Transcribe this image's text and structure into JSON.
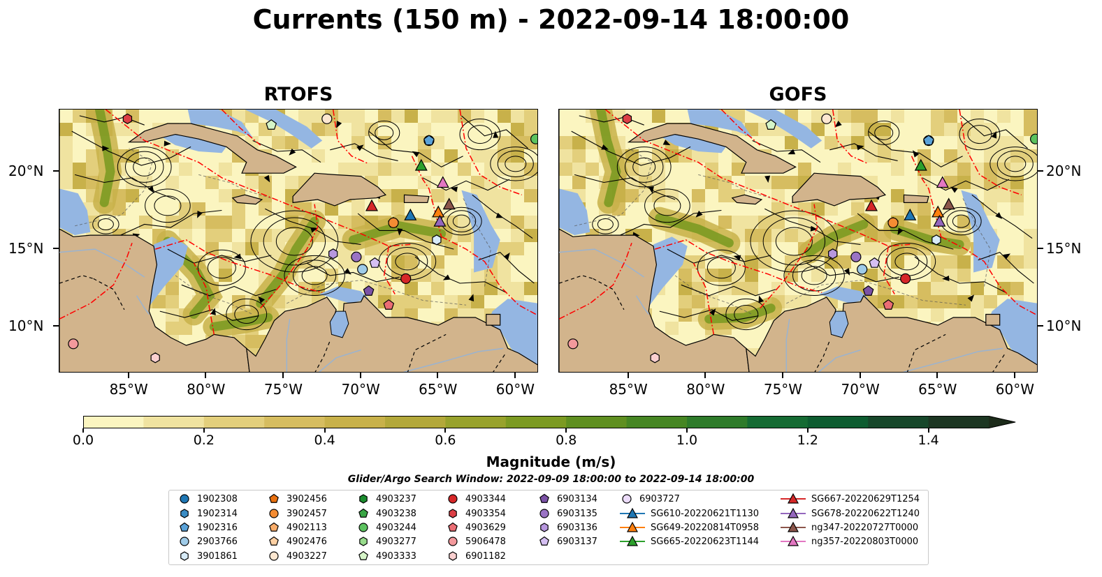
{
  "title": "Currents (150 m) - 2022-09-14 18:00:00",
  "panels": [
    {
      "id": "rtofs",
      "title": "RTOFS"
    },
    {
      "id": "gofs",
      "title": "GOFS"
    }
  ],
  "map_axes": {
    "lon_ticks": [
      "85°W",
      "80°W",
      "75°W",
      "70°W",
      "65°W",
      "60°W"
    ],
    "lat_ticks": [
      "20°N",
      "15°N",
      "10°N"
    ],
    "extent": {
      "lon_min": -89.5,
      "lon_max": -58.5,
      "lat_min": 7,
      "lat_max": 24
    }
  },
  "colorbar": {
    "title": "Magnitude (m/s)",
    "tick_labels": [
      "0.0",
      "0.2",
      "0.4",
      "0.6",
      "0.8",
      "1.0",
      "1.2",
      "1.4"
    ],
    "range": [
      0.0,
      1.5
    ],
    "extend": "max",
    "colors": [
      "#fbf5c0",
      "#f0e3a0",
      "#e3cf7c",
      "#d6bd60",
      "#c8b14a",
      "#b3a83a",
      "#98a22c",
      "#7c9a22",
      "#5f8f20",
      "#468623",
      "#2e7b2a",
      "#156b33",
      "#0d5c30",
      "#16472a",
      "#1c3622",
      "#1c2b1a"
    ]
  },
  "search_window": "Glider/Argo Search Window: 2022-09-09 18:00:00 to 2022-09-14 18:00:00",
  "colors": {
    "land": "#d2b48c",
    "shallow_water": "#94b6e2",
    "eez_lines": "#ff0000",
    "streamlines": "#000000"
  },
  "legend": [
    {
      "label": "1902308",
      "marker": "circle",
      "color": "#1f77b4"
    },
    {
      "label": "1902314",
      "marker": "hexagon",
      "color": "#3a8cc4"
    },
    {
      "label": "1902316",
      "marker": "pentagon",
      "color": "#5aa2d8"
    },
    {
      "label": "2903766",
      "marker": "circle",
      "color": "#9fcbe8"
    },
    {
      "label": "3901861",
      "marker": "hexagon",
      "color": "#d7ebf8"
    },
    {
      "label": "3902456",
      "marker": "pentagon",
      "color": "#e8700f"
    },
    {
      "label": "3902457",
      "marker": "circle",
      "color": "#f48c33"
    },
    {
      "label": "4902113",
      "marker": "pentagon",
      "color": "#f9ad6a"
    },
    {
      "label": "4902476",
      "marker": "pentagon",
      "color": "#fdd0a3"
    },
    {
      "label": "4903227",
      "marker": "circle",
      "color": "#fde7d0"
    },
    {
      "label": "4903237",
      "marker": "hexagon",
      "color": "#1b8c2e"
    },
    {
      "label": "4903238",
      "marker": "pentagon",
      "color": "#3aa646"
    },
    {
      "label": "4903244",
      "marker": "circle",
      "color": "#5cc25f"
    },
    {
      "label": "4903277",
      "marker": "hexagon",
      "color": "#98dc8c"
    },
    {
      "label": "4903333",
      "marker": "pentagon",
      "color": "#d6f5c8"
    },
    {
      "label": "4903344",
      "marker": "circle",
      "color": "#d62728"
    },
    {
      "label": "4903354",
      "marker": "hexagon",
      "color": "#dc3f45"
    },
    {
      "label": "4903629",
      "marker": "pentagon",
      "color": "#ea6d74"
    },
    {
      "label": "5906478",
      "marker": "circle",
      "color": "#f3999c"
    },
    {
      "label": "6901182",
      "marker": "hexagon",
      "color": "#fbd0d0"
    },
    {
      "label": "6903134",
      "marker": "pentagon",
      "color": "#7b52a6"
    },
    {
      "label": "6903135",
      "marker": "circle",
      "color": "#9a73c4"
    },
    {
      "label": "6903136",
      "marker": "hexagon",
      "color": "#b797de"
    },
    {
      "label": "6903137",
      "marker": "pentagon",
      "color": "#d5bff2"
    },
    {
      "label": "6903727",
      "marker": "circle",
      "color": "#ecdcfa"
    },
    {
      "label": "SG610-20220621T1130",
      "marker": "triangle-line",
      "color": "#1f77b4"
    },
    {
      "label": "SG649-20220814T0958",
      "marker": "triangle-line",
      "color": "#ff7f0e"
    },
    {
      "label": "SG665-20220623T1144",
      "marker": "triangle-line",
      "color": "#2ca02c"
    },
    {
      "label": "SG667-20220629T1254",
      "marker": "triangle-line",
      "color": "#d62728"
    },
    {
      "label": "SG678-20220622T1240",
      "marker": "triangle-line",
      "color": "#9467bd"
    },
    {
      "label": "ng347-20220727T0000",
      "marker": "triangle-line",
      "color": "#8c564b"
    },
    {
      "label": "ng357-20220803T0000",
      "marker": "triangle-line",
      "color": "#e377c2"
    }
  ],
  "observations": [
    {
      "id": "1902308",
      "lon": -65.6,
      "lat": 22.0
    },
    {
      "id": "1902314",
      "lon": -65.6,
      "lat": 22.0
    },
    {
      "id": "1902316",
      "lon": -65.6,
      "lat": 22.0
    },
    {
      "id": "2903766",
      "lon": -69.9,
      "lat": 13.7
    },
    {
      "id": "3901861",
      "lon": -65.1,
      "lat": 15.6
    },
    {
      "id": "3902456",
      "lon": -67.9,
      "lat": 16.7
    },
    {
      "id": "3902457",
      "lon": -67.9,
      "lat": 16.7
    },
    {
      "id": "4903227",
      "lon": -72.2,
      "lat": 23.4
    },
    {
      "id": "4903244",
      "lon": -58.7,
      "lat": 22.1
    },
    {
      "id": "4903333",
      "lon": -75.8,
      "lat": 23.0
    },
    {
      "id": "4903344",
      "lon": -67.1,
      "lat": 13.1
    },
    {
      "id": "4903354",
      "lon": -85.1,
      "lat": 23.4
    },
    {
      "id": "4903629",
      "lon": -68.2,
      "lat": 11.4
    },
    {
      "id": "5906478",
      "lon": -88.6,
      "lat": 8.9
    },
    {
      "id": "6901182",
      "lon": -83.3,
      "lat": 8.0
    },
    {
      "id": "6903134",
      "lon": -69.5,
      "lat": 12.3
    },
    {
      "id": "6903135",
      "lon": -70.3,
      "lat": 14.5
    },
    {
      "id": "6903136",
      "lon": -71.8,
      "lat": 14.7
    },
    {
      "id": "6903137",
      "lon": -69.1,
      "lat": 14.1
    },
    {
      "id": "SG610-20220621T1130",
      "lon": -66.8,
      "lat": 17.2
    },
    {
      "id": "SG649-20220814T0958",
      "lon": -65.0,
      "lat": 17.4
    },
    {
      "id": "SG665-20220623T1144",
      "lon": -66.1,
      "lat": 20.4
    },
    {
      "id": "SG667-20220629T1254",
      "lon": -69.3,
      "lat": 17.8
    },
    {
      "id": "SG678-20220622T1240",
      "lon": -64.9,
      "lat": 16.8
    },
    {
      "id": "ng347-20220727T0000",
      "lon": -64.3,
      "lat": 17.9
    },
    {
      "id": "ng357-20220803T0000",
      "lon": -64.7,
      "lat": 19.3
    }
  ]
}
